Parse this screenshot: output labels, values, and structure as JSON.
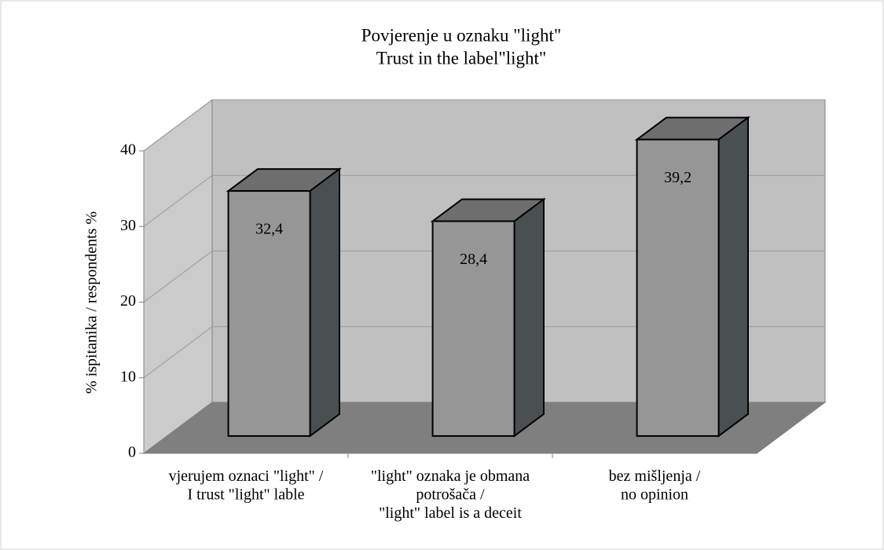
{
  "chart_data": {
    "type": "bar3d",
    "title": "Povjerenje u oznaku \"light\"",
    "subtitle": "Trust in the label\"light\"",
    "y_label": "% ispitanika / respondents %",
    "categories": [
      "vjerujem oznaci \"light\" /\nI trust \"light\" lable",
      "\"light\" oznaka je obmana\npotrošača /\n\"light\" label is a deceit",
      "bez mišljenja /\nno opinion"
    ],
    "values": [
      32.4,
      28.4,
      39.2
    ],
    "value_labels": [
      "32,4",
      "28,4",
      "39,2"
    ],
    "ylim": [
      0,
      40
    ],
    "yticks": [
      0,
      10,
      20,
      30,
      40
    ],
    "grid": true,
    "color": "#969696"
  }
}
